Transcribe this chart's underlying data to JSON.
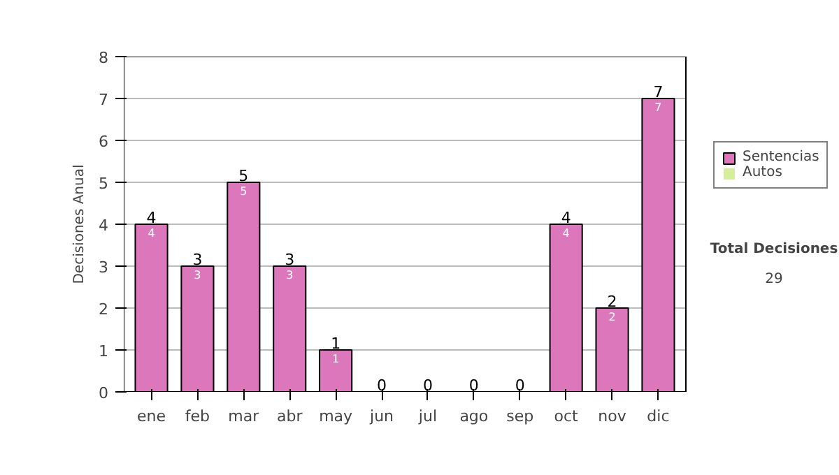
{
  "chart_data": {
    "type": "bar",
    "stacked": true,
    "categories": [
      "ene",
      "feb",
      "mar",
      "abr",
      "may",
      "jun",
      "jul",
      "ago",
      "sep",
      "oct",
      "nov",
      "dic"
    ],
    "series": [
      {
        "name": "Sentencias",
        "color": "#dd77bb",
        "values": [
          4,
          3,
          5,
          3,
          1,
          0,
          0,
          0,
          0,
          4,
          2,
          7
        ],
        "value_labels": [
          "4",
          "3",
          "5",
          "3",
          "1",
          null,
          null,
          null,
          null,
          "4",
          "2",
          "7"
        ]
      },
      {
        "name": "Autos",
        "color": "#d4ee9a",
        "values": [
          0,
          0,
          0,
          0,
          0,
          0,
          0,
          0,
          0,
          0,
          0,
          0
        ]
      }
    ],
    "totals": [
      "4",
      "3",
      "5",
      "3",
      "1",
      "0",
      "0",
      "0",
      "0",
      "4",
      "2",
      "7"
    ],
    "ylabel": "Decisiones Anual",
    "ylim": [
      0,
      8
    ],
    "yticks": [
      0,
      1,
      2,
      3,
      4,
      5,
      6,
      7,
      8
    ],
    "grid": "y",
    "legend": "right",
    "annotations": [
      "Total Decisiones",
      "29"
    ]
  }
}
